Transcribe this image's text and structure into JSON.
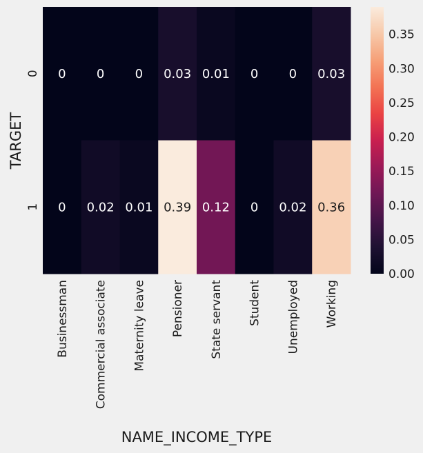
{
  "chart_data": {
    "type": "heatmap",
    "xlabel": "NAME_INCOME_TYPE",
    "ylabel": "TARGET",
    "x_categories": [
      "Businessman",
      "Commercial associate",
      "Maternity leave",
      "Pensioner",
      "State servant",
      "Student",
      "Unemployed",
      "Working"
    ],
    "y_categories": [
      "0",
      "1"
    ],
    "values": [
      [
        0.0,
        0.0,
        0.0,
        0.03,
        0.01,
        0.0,
        0.0,
        0.03
      ],
      [
        0.0,
        0.02,
        0.01,
        0.39,
        0.12,
        0.0,
        0.02,
        0.36
      ]
    ],
    "cell_labels": [
      [
        "0",
        "0",
        "0",
        "0.03",
        "0.01",
        "0",
        "0",
        "0.03"
      ],
      [
        "0",
        "0.02",
        "0.01",
        "0.39",
        "0.12",
        "0",
        "0.02",
        "0.36"
      ]
    ],
    "colorbar": {
      "vmin": 0.0,
      "vmax": 0.39,
      "ticks": [
        "0.00",
        "0.05",
        "0.10",
        "0.15",
        "0.20",
        "0.25",
        "0.30",
        "0.35"
      ],
      "colormap": "rocket"
    },
    "grid": false
  },
  "colors": {
    "background": "#f0f0f0",
    "text_dark": "#1a1a1a",
    "text_light": "#ffffff"
  }
}
